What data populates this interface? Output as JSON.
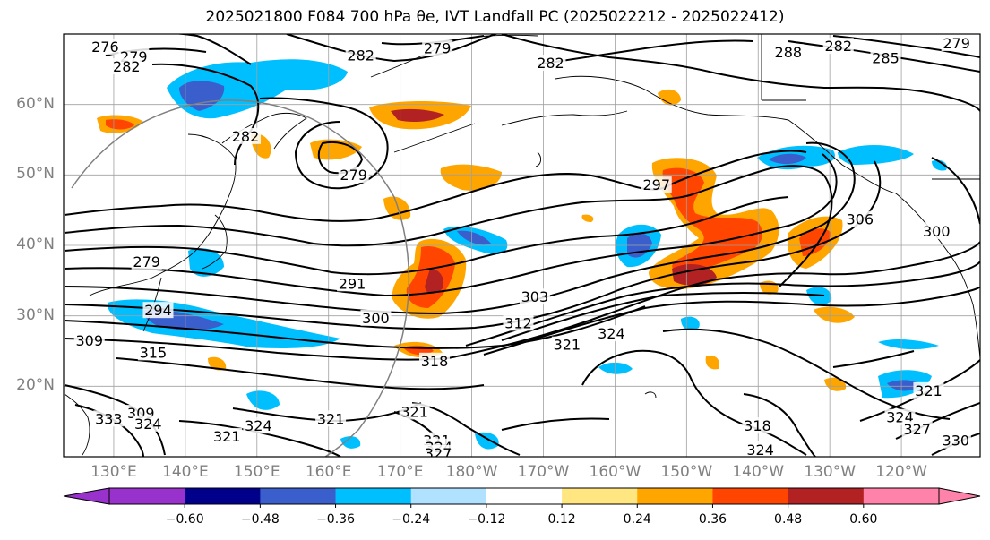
{
  "title": "2025021800 F084 700 hPa θe, IVT Landfall PC (2025022212 - 2025022412)",
  "chart_data": {
    "type": "heatmap",
    "projection": "map",
    "lat_ticks": [
      "20°N",
      "30°N",
      "40°N",
      "50°N",
      "60°N"
    ],
    "lat_values": [
      20,
      30,
      40,
      50,
      60
    ],
    "lon_ticks": [
      "130°E",
      "140°E",
      "150°E",
      "160°E",
      "170°E",
      "180°W",
      "170°W",
      "160°W",
      "150°W",
      "140°W",
      "130°W",
      "120°W"
    ],
    "lon_values": [
      130,
      140,
      150,
      160,
      170,
      180,
      190,
      200,
      210,
      220,
      230,
      240
    ],
    "extent": {
      "lon": [
        123,
        251
      ],
      "lat": [
        10,
        70
      ]
    },
    "grid": true,
    "colorbar": {
      "ticks": [
        "−0.60",
        "−0.48",
        "−0.36",
        "−0.24",
        "−0.12",
        "0.12",
        "0.24",
        "0.36",
        "0.48",
        "0.60"
      ],
      "tick_values": [
        -0.6,
        -0.48,
        -0.36,
        -0.24,
        -0.12,
        0.12,
        0.24,
        0.36,
        0.48,
        0.6
      ],
      "colors": [
        "#9932cc",
        "#00008b",
        "#3a5fcd",
        "#00bfff",
        "#b0e2ff",
        "#ffffff",
        "#ffe680",
        "#ffa500",
        "#ff4500",
        "#b22222",
        "#ff82ab"
      ],
      "extend": "both"
    },
    "contour_labels": [
      {
        "text": "276",
        "lon": 128.8,
        "lat": 68.1
      },
      {
        "text": "279",
        "lon": 132.8,
        "lat": 66.7
      },
      {
        "text": "282",
        "lon": 131.8,
        "lat": 65.3
      },
      {
        "text": "282",
        "lon": 164.5,
        "lat": 66.9
      },
      {
        "text": "279",
        "lon": 175.2,
        "lat": 67.9
      },
      {
        "text": "282",
        "lon": 191,
        "lat": 65.8
      },
      {
        "text": "288",
        "lon": 224.2,
        "lat": 67.3
      },
      {
        "text": "282",
        "lon": 231.2,
        "lat": 68.2
      },
      {
        "text": "285",
        "lon": 237.8,
        "lat": 66.5
      },
      {
        "text": "279",
        "lon": 247.7,
        "lat": 68.6
      },
      {
        "text": "282",
        "lon": 148.4,
        "lat": 55.4
      },
      {
        "text": "279",
        "lon": 163.5,
        "lat": 49.9
      },
      {
        "text": "297",
        "lon": 205.8,
        "lat": 48.5
      },
      {
        "text": "306",
        "lon": 234.2,
        "lat": 43.6
      },
      {
        "text": "300",
        "lon": 244.9,
        "lat": 41.9
      },
      {
        "text": "279",
        "lon": 134.6,
        "lat": 37.6
      },
      {
        "text": "291",
        "lon": 163.3,
        "lat": 34.5
      },
      {
        "text": "303",
        "lon": 188.8,
        "lat": 32.6
      },
      {
        "text": "294",
        "lon": 136.2,
        "lat": 30.7
      },
      {
        "text": "300",
        "lon": 166.6,
        "lat": 29.6
      },
      {
        "text": "312",
        "lon": 186.5,
        "lat": 28.9
      },
      {
        "text": "324",
        "lon": 199.5,
        "lat": 27.4
      },
      {
        "text": "321",
        "lon": 193.3,
        "lat": 25.8
      },
      {
        "text": "309",
        "lon": 126.6,
        "lat": 26.4
      },
      {
        "text": "315",
        "lon": 135.5,
        "lat": 24.7
      },
      {
        "text": "318",
        "lon": 174.8,
        "lat": 23.5
      },
      {
        "text": "309",
        "lon": 133.8,
        "lat": 16.1
      },
      {
        "text": "324",
        "lon": 134.8,
        "lat": 14.6
      },
      {
        "text": "333",
        "lon": 129.3,
        "lat": 15.3
      },
      {
        "text": "324",
        "lon": 150.2,
        "lat": 14.3
      },
      {
        "text": "321",
        "lon": 160.3,
        "lat": 15.3
      },
      {
        "text": "321",
        "lon": 145.8,
        "lat": 12.8
      },
      {
        "text": "321",
        "lon": 172,
        "lat": 16.3
      },
      {
        "text": "321",
        "lon": 175.1,
        "lat": 12.2
      },
      {
        "text": "324",
        "lon": 175.4,
        "lat": 11.3
      },
      {
        "text": "327",
        "lon": 175.3,
        "lat": 10.4
      },
      {
        "text": "318",
        "lon": 219.9,
        "lat": 14.3
      },
      {
        "text": "324",
        "lon": 220.3,
        "lat": 10.9
      },
      {
        "text": "321",
        "lon": 243.8,
        "lat": 19.3
      },
      {
        "text": "324",
        "lon": 239.8,
        "lat": 15.5
      },
      {
        "text": "327",
        "lon": 242.2,
        "lat": 13.8
      },
      {
        "text": "330",
        "lon": 247.6,
        "lat": 12.2
      }
    ]
  }
}
